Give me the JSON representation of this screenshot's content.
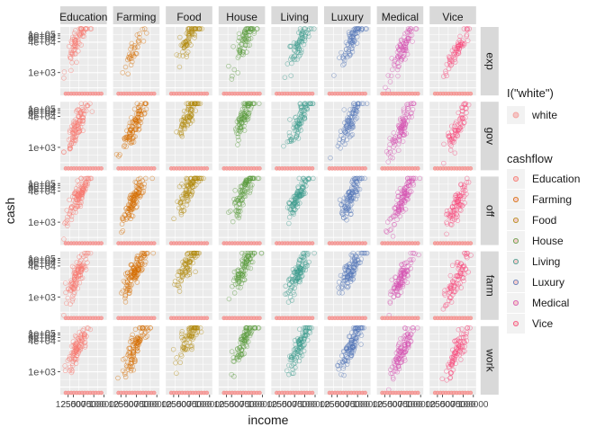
{
  "chart_data": {
    "type": "scatter",
    "facet_columns": [
      "Education",
      "Farming",
      "Food",
      "House",
      "Living",
      "Luxury",
      "Medical",
      "Vice"
    ],
    "facet_rows": [
      "exp",
      "gov",
      "off",
      "farm",
      "work"
    ],
    "xlabel": "income",
    "ylabel": "cash",
    "y_scale": "log10",
    "y_tick_labels": [
      "1e+05",
      "8e+04",
      "6e+04",
      "4e+04",
      "1e+03"
    ],
    "y_tick_values": [
      100000,
      80000,
      60000,
      40000,
      1000
    ],
    "ylim": [
      0,
      150000
    ],
    "x_tick_labels": [
      "12500",
      "25000",
      "50000",
      "75000",
      "100000"
    ],
    "grid": true,
    "panel_background": "#ebebeb",
    "strip_background": "#d9d9d9",
    "legend_fill_title": "I(\"white\")",
    "legend_fill_items": [
      {
        "label": "white",
        "color": "#f3a6a6"
      }
    ],
    "legend_title": "cashflow",
    "legend_position": "right",
    "series": [
      {
        "name": "Education",
        "color": "#f8766d"
      },
      {
        "name": "Farming",
        "color": "#d56e00"
      },
      {
        "name": "Food",
        "color": "#b0890b"
      },
      {
        "name": "House",
        "color": "#5a9a3c"
      },
      {
        "name": "Living",
        "color": "#3a9a8c"
      },
      {
        "name": "Luxury",
        "color": "#5476b8"
      },
      {
        "name": "Medical",
        "color": "#d550b0"
      },
      {
        "name": "Vice",
        "color": "#f8477a"
      }
    ],
    "approx_clouds": {
      "exp": [
        [
          35000,
          40000,
          0.5
        ],
        [
          45000,
          15000,
          0.25
        ],
        [
          50000,
          60000,
          0.5
        ],
        [
          55000,
          40000,
          0.55
        ],
        [
          60000,
          30000,
          0.5
        ],
        [
          60000,
          50000,
          0.55
        ],
        [
          55000,
          15000,
          0.6
        ],
        [
          60000,
          12000,
          0.45
        ]
      ],
      "gov": [
        [
          35000,
          15000,
          0.7
        ],
        [
          45000,
          15000,
          0.75
        ],
        [
          50000,
          60000,
          0.6
        ],
        [
          55000,
          40000,
          0.65
        ],
        [
          60000,
          20000,
          0.6
        ],
        [
          60000,
          30000,
          0.65
        ],
        [
          55000,
          12000,
          0.7
        ],
        [
          60000,
          10000,
          0.5
        ]
      ],
      "off": [
        [
          35000,
          15000,
          0.8
        ],
        [
          45000,
          15000,
          0.8
        ],
        [
          50000,
          60000,
          0.7
        ],
        [
          55000,
          40000,
          0.7
        ],
        [
          60000,
          25000,
          0.7
        ],
        [
          60000,
          25000,
          0.75
        ],
        [
          55000,
          12000,
          0.8
        ],
        [
          60000,
          10000,
          0.6
        ]
      ],
      "farm": [
        [
          35000,
          15000,
          0.75
        ],
        [
          45000,
          15000,
          0.9
        ],
        [
          50000,
          60000,
          0.6
        ],
        [
          55000,
          40000,
          0.7
        ],
        [
          60000,
          20000,
          0.75
        ],
        [
          60000,
          25000,
          0.75
        ],
        [
          55000,
          12000,
          0.75
        ],
        [
          60000,
          10000,
          0.6
        ]
      ],
      "work": [
        [
          35000,
          15000,
          0.7
        ],
        [
          45000,
          15000,
          0.75
        ],
        [
          50000,
          60000,
          0.55
        ],
        [
          55000,
          40000,
          0.65
        ],
        [
          60000,
          20000,
          0.7
        ],
        [
          60000,
          25000,
          0.8
        ],
        [
          55000,
          12000,
          0.75
        ],
        [
          60000,
          10000,
          0.6
        ]
      ]
    }
  }
}
